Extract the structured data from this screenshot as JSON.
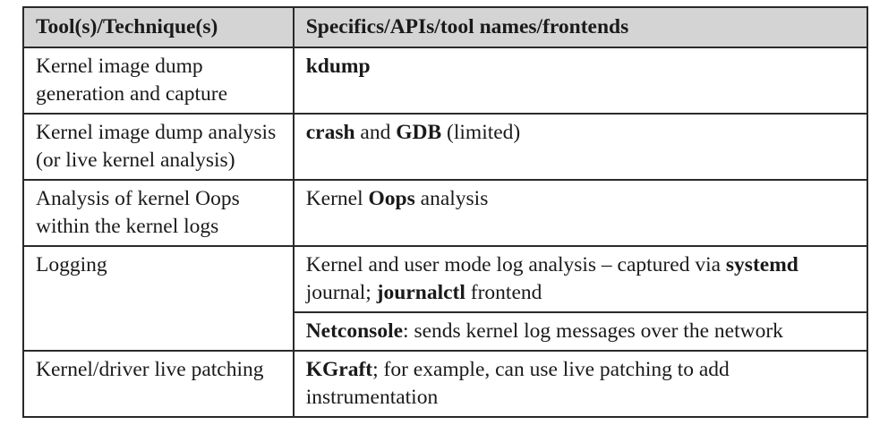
{
  "table": {
    "headers": {
      "tool": "Tool(s)/Technique(s)",
      "specifics": "Specifics/APIs/tool names/frontends"
    },
    "rows": [
      {
        "tool": "Kernel image dump generation and capture",
        "spec": [
          {
            "b1": "kdump"
          }
        ]
      },
      {
        "tool": "Kernel image dump analysis (or live kernel analysis)",
        "spec": [
          {
            "b1": "crash",
            "t1": " and ",
            "b2": "GDB",
            "t2": " (limited)"
          }
        ]
      },
      {
        "tool": "Analysis of kernel Oops within the kernel logs",
        "spec": [
          {
            "t1": "Kernel ",
            "b1": "Oops",
            "t2": " analysis"
          }
        ]
      },
      {
        "tool": "Logging",
        "spec": [
          {
            "t1": "Kernel and user mode log analysis – captured via ",
            "b1": "systemd",
            "t2": " journal; ",
            "b2": "journalctl",
            "t3": " frontend"
          },
          {
            "b1": "Netconsole",
            "t1": ": sends kernel log messages over the network"
          }
        ]
      },
      {
        "tool": "Kernel/driver live patching",
        "spec": [
          {
            "b1": "KGraft",
            "t1": "; for example, can use live patching to add instrumentation"
          }
        ]
      }
    ]
  }
}
